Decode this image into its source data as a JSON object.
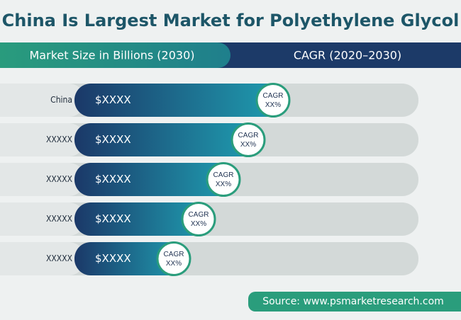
{
  "header": {
    "title": "China Is Largest Market for Polyethylene Glycol"
  },
  "subheader": {
    "left": "Market Size in Billions (2030)",
    "right": "CAGR (2020–2030)"
  },
  "rows": [
    {
      "label": "China",
      "value": "$XXXX",
      "cagr": "CAGR",
      "cagr_value": "XX%"
    },
    {
      "label": "XXXXX",
      "value": "$XXXX",
      "cagr": "CAGR",
      "cagr_value": "XX%"
    },
    {
      "label": "XXXXX",
      "value": "$XXXX",
      "cagr": "CAGR",
      "cagr_value": "XX%"
    },
    {
      "label": "XXXXX",
      "value": "$XXXX",
      "cagr": "CAGR",
      "cagr_value": "XX%"
    },
    {
      "label": "XXXXX",
      "value": "$XXXX",
      "cagr": "CAGR",
      "cagr_value": "XX%"
    }
  ],
  "source": "Source: www.psmarketresearch.com"
}
